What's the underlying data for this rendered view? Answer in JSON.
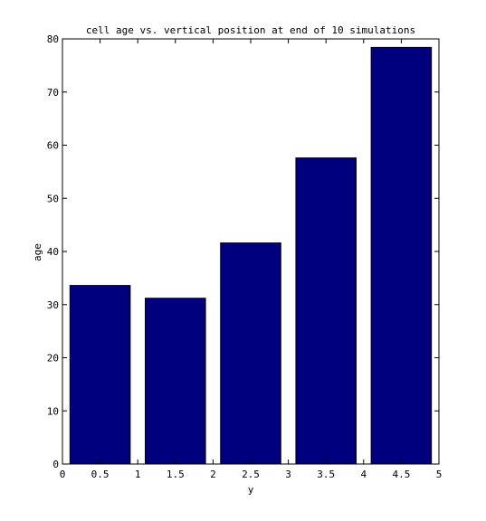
{
  "chart_data": {
    "type": "bar",
    "title": "cell age vs. vertical position at end of 10 simulations",
    "xlabel": "y",
    "ylabel": "age",
    "x": [
      0.5,
      1.5,
      2.5,
      3.5,
      4.5
    ],
    "values": [
      33.6,
      31.2,
      41.6,
      57.6,
      78.4
    ],
    "xlim": [
      0,
      5
    ],
    "ylim": [
      0,
      80
    ],
    "xticks": [
      0,
      0.5,
      1,
      1.5,
      2,
      2.5,
      3,
      3.5,
      4,
      4.5,
      5
    ],
    "xtick_labels": [
      "0",
      "0.5",
      "1",
      "1.5",
      "2",
      "2.5",
      "3",
      "3.5",
      "4",
      "4.5",
      "5"
    ],
    "yticks": [
      0,
      10,
      20,
      30,
      40,
      50,
      60,
      70,
      80
    ],
    "ytick_labels": [
      "0",
      "10",
      "20",
      "30",
      "40",
      "50",
      "60",
      "70",
      "80"
    ],
    "bar_color": "#00007f",
    "grid": false,
    "legend": "none"
  }
}
